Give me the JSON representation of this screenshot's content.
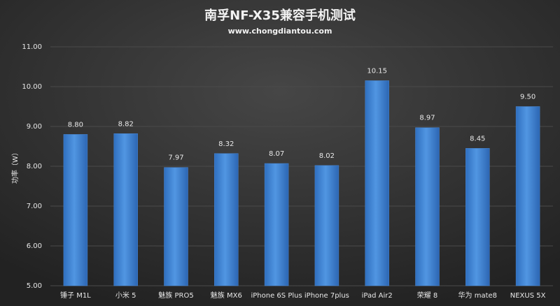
{
  "chart_data": {
    "type": "bar",
    "title": "南孚NF-X35兼容手机测试",
    "subtitle": "www.chongdiantou.com",
    "y_label": "功率（W）",
    "categories": [
      "锤子 M1L",
      "小米 5",
      "魅族 PRO5",
      "魅族 MX6",
      "iPhone 6S Plus",
      "iPhone 7plus",
      "iPad Air2",
      "荣耀 8",
      "华为 mate8",
      "NEXUS 5X"
    ],
    "values": [
      8.8,
      8.82,
      7.97,
      8.32,
      8.07,
      8.02,
      10.15,
      8.97,
      8.45,
      9.5
    ],
    "value_labels": [
      "8.80",
      "8.82",
      "7.97",
      "8.32",
      "8.07",
      "8.02",
      "10.15",
      "8.97",
      "8.45",
      "9.50"
    ],
    "color": "#4a88d4",
    "ylim": [
      5,
      11
    ],
    "yticks": [
      {
        "value": 5,
        "label": "5.00"
      },
      {
        "value": 6,
        "label": "6.00"
      },
      {
        "value": 7,
        "label": "7.00"
      },
      {
        "value": 8,
        "label": "8.00"
      },
      {
        "value": 9,
        "label": "9.00"
      },
      {
        "value": 10,
        "label": "10.00"
      },
      {
        "value": 11,
        "label": "11.00"
      }
    ],
    "grid": true
  }
}
